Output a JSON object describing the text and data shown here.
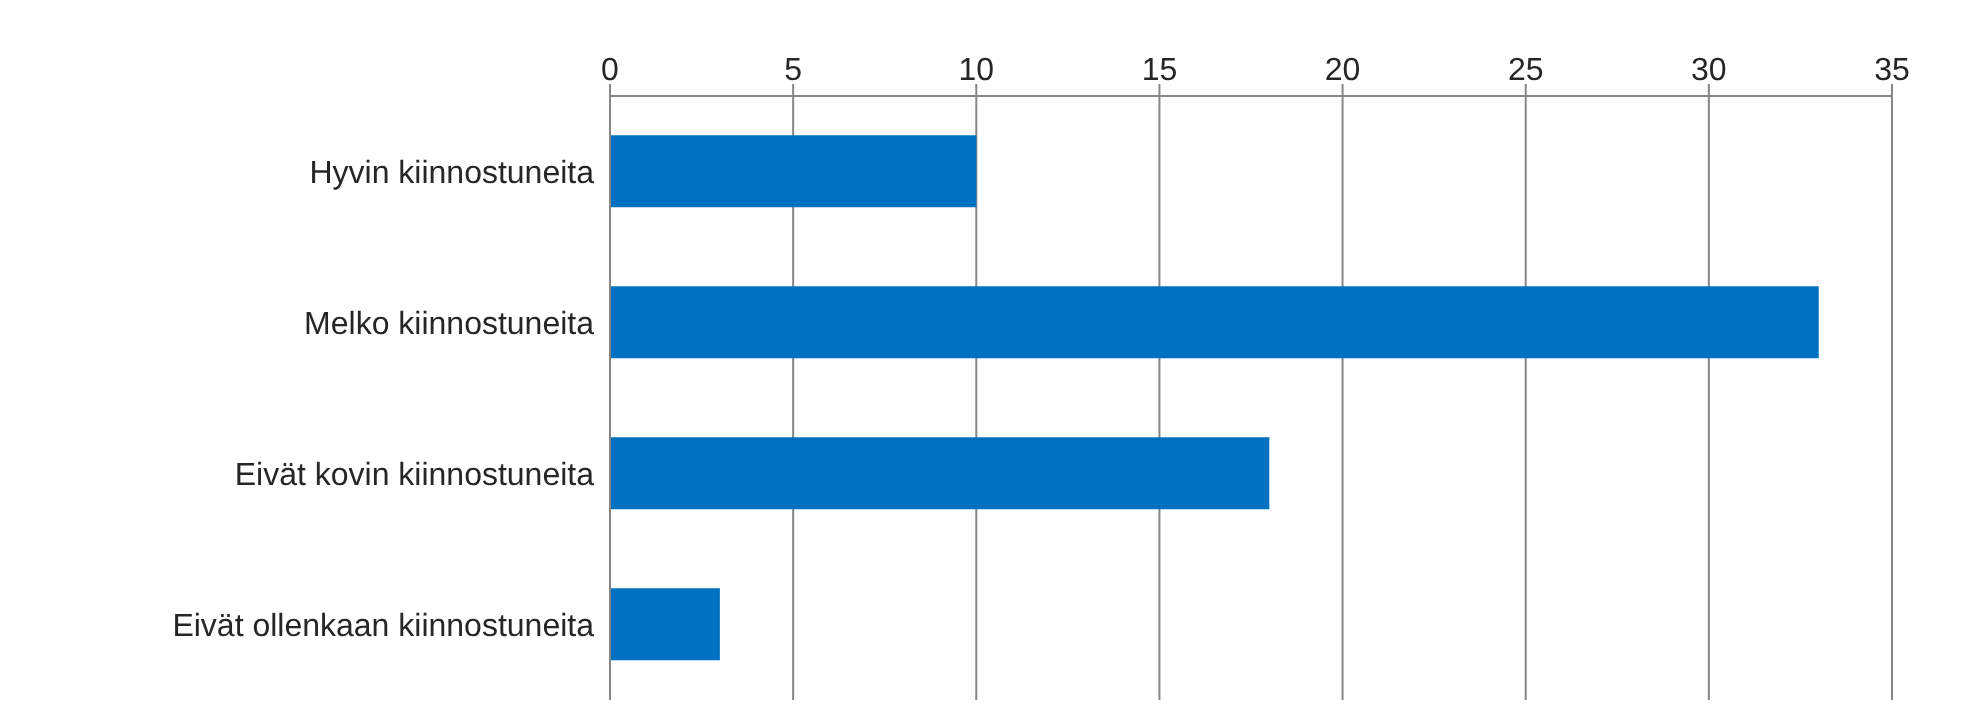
{
  "chart_data": {
    "type": "bar",
    "orientation": "horizontal",
    "categories": [
      "Hyvin kiinnostuneita",
      "Melko kiinnostuneita",
      "Eivät kovin kiinnostuneita",
      "Eivät ollenkaan kiinnostuneita"
    ],
    "values": [
      10,
      33,
      18,
      3
    ],
    "color": "#0070c0",
    "xlim": [
      0,
      35
    ],
    "xticks": [
      0,
      5,
      10,
      15,
      20,
      25,
      30,
      35
    ],
    "grid": "x"
  }
}
